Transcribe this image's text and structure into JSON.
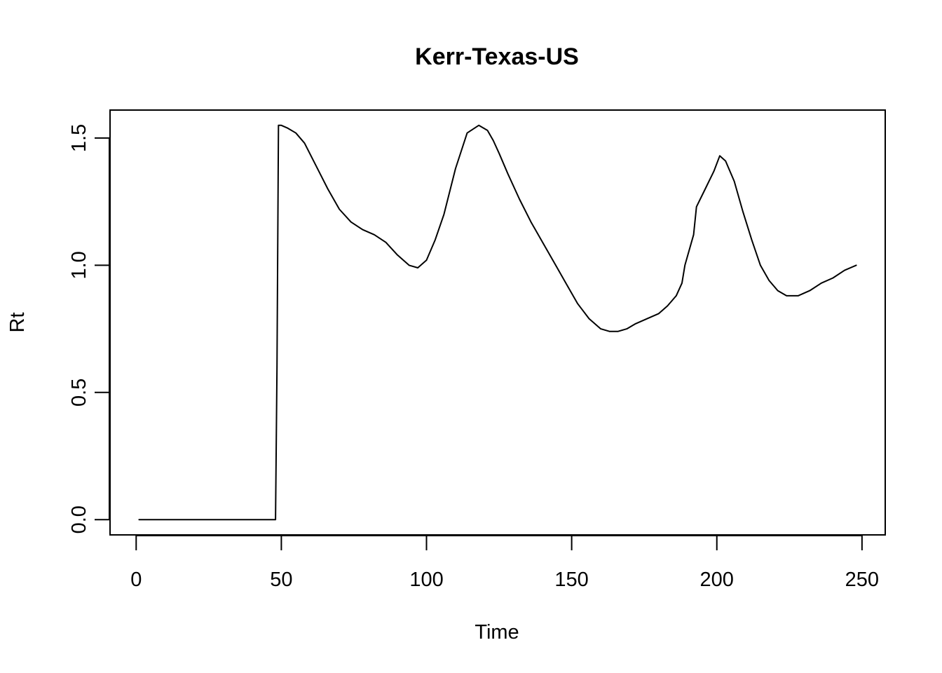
{
  "chart_data": {
    "type": "line",
    "title": "Kerr-Texas-US",
    "xlabel": "Time",
    "ylabel": "Rt",
    "xlim": [
      -9,
      258
    ],
    "ylim": [
      -0.06,
      1.61
    ],
    "x_ticks": [
      0,
      50,
      100,
      150,
      200,
      250
    ],
    "x_tick_labels": [
      "0",
      "50",
      "100",
      "150",
      "200",
      "250"
    ],
    "y_ticks": [
      0.0,
      0.5,
      1.0,
      1.5
    ],
    "y_tick_labels": [
      "0.0",
      "0.5",
      "1.0",
      "1.5"
    ],
    "grid": false,
    "legend": "none",
    "line_color": "#000000",
    "series": [
      {
        "x": [
          1,
          10,
          20,
          30,
          40,
          48,
          48.5,
          49,
          50,
          52,
          55,
          58,
          62,
          66,
          70,
          74,
          78,
          82,
          86,
          90,
          94,
          97,
          100,
          103,
          106,
          110,
          114,
          118,
          121,
          123,
          125,
          128,
          132,
          136,
          140,
          144,
          148,
          152,
          156,
          160,
          163,
          166,
          169,
          172,
          176,
          180,
          183,
          186,
          188,
          189,
          192,
          193,
          196,
          199,
          201,
          203,
          206,
          209,
          212,
          215,
          218,
          221,
          224,
          228,
          232,
          236,
          240,
          244,
          248
        ],
        "y": [
          0.0,
          0.0,
          0.0,
          0.0,
          0.0,
          0.0,
          0.6,
          1.55,
          1.55,
          1.54,
          1.52,
          1.48,
          1.39,
          1.3,
          1.22,
          1.17,
          1.14,
          1.12,
          1.09,
          1.04,
          1.0,
          0.99,
          1.02,
          1.1,
          1.2,
          1.38,
          1.52,
          1.55,
          1.53,
          1.49,
          1.44,
          1.36,
          1.26,
          1.17,
          1.09,
          1.01,
          0.93,
          0.85,
          0.79,
          0.75,
          0.74,
          0.74,
          0.75,
          0.77,
          0.79,
          0.81,
          0.84,
          0.88,
          0.93,
          1.0,
          1.12,
          1.23,
          1.3,
          1.37,
          1.43,
          1.41,
          1.33,
          1.21,
          1.1,
          1.0,
          0.94,
          0.9,
          0.88,
          0.88,
          0.9,
          0.93,
          0.95,
          0.98,
          1.0
        ]
      }
    ]
  }
}
